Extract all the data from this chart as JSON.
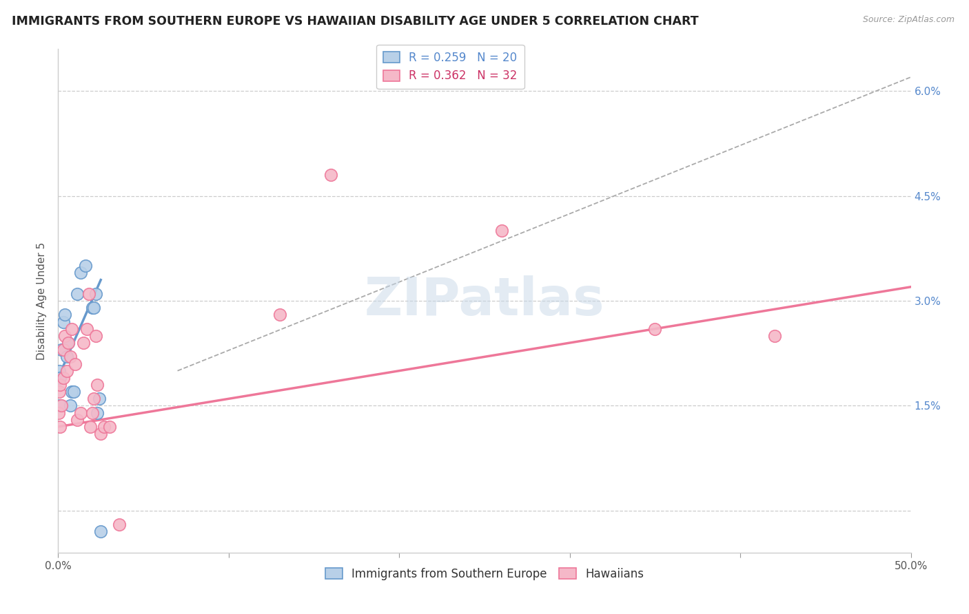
{
  "title": "IMMIGRANTS FROM SOUTHERN EUROPE VS HAWAIIAN DISABILITY AGE UNDER 5 CORRELATION CHART",
  "source": "Source: ZipAtlas.com",
  "ylabel": "Disability Age Under 5",
  "xlim": [
    0.0,
    0.5
  ],
  "ylim": [
    -0.006,
    0.066
  ],
  "yticks": [
    0.0,
    0.015,
    0.03,
    0.045,
    0.06
  ],
  "ytick_labels": [
    "",
    "1.5%",
    "3.0%",
    "4.5%",
    "6.0%"
  ],
  "xticks": [
    0.0,
    0.1,
    0.2,
    0.3,
    0.4,
    0.5
  ],
  "xtick_labels": [
    "0.0%",
    "",
    "",
    "",
    "",
    "50.0%"
  ],
  "blue_R": 0.259,
  "blue_N": 20,
  "pink_R": 0.362,
  "pink_N": 32,
  "blue_scatter_x": [
    0.0005,
    0.001,
    0.001,
    0.002,
    0.003,
    0.004,
    0.005,
    0.006,
    0.007,
    0.008,
    0.009,
    0.011,
    0.013,
    0.016,
    0.02,
    0.021,
    0.022,
    0.023,
    0.024,
    0.025
  ],
  "blue_scatter_y": [
    0.02,
    0.015,
    0.019,
    0.023,
    0.027,
    0.028,
    0.022,
    0.024,
    0.015,
    0.017,
    0.017,
    0.031,
    0.034,
    0.035,
    0.029,
    0.029,
    0.031,
    0.014,
    0.016,
    -0.003
  ],
  "pink_scatter_x": [
    0.0004,
    0.0005,
    0.001,
    0.001,
    0.002,
    0.003,
    0.003,
    0.004,
    0.005,
    0.006,
    0.007,
    0.008,
    0.01,
    0.011,
    0.013,
    0.015,
    0.017,
    0.018,
    0.019,
    0.02,
    0.021,
    0.022,
    0.023,
    0.025,
    0.027,
    0.03,
    0.036,
    0.13,
    0.16,
    0.26,
    0.35,
    0.42
  ],
  "pink_scatter_y": [
    0.014,
    0.017,
    0.012,
    0.018,
    0.015,
    0.019,
    0.023,
    0.025,
    0.02,
    0.024,
    0.022,
    0.026,
    0.021,
    0.013,
    0.014,
    0.024,
    0.026,
    0.031,
    0.012,
    0.014,
    0.016,
    0.025,
    0.018,
    0.011,
    0.012,
    0.012,
    -0.002,
    0.028,
    0.048,
    0.04,
    0.026,
    0.025
  ],
  "blue_line_x": [
    0.0,
    0.025
  ],
  "blue_line_y": [
    0.019,
    0.033
  ],
  "pink_line_x": [
    0.0,
    0.5
  ],
  "pink_line_y": [
    0.012,
    0.032
  ],
  "dashed_line_x": [
    0.07,
    0.5
  ],
  "dashed_line_y": [
    0.02,
    0.062
  ],
  "watermark": "ZIPatlas",
  "background_color": "#ffffff",
  "blue_color": "#6699cc",
  "pink_color": "#ee7799",
  "blue_fill": "#b8d0e8",
  "pink_fill": "#f5b8c8",
  "grid_color": "#cccccc",
  "title_fontsize": 12.5,
  "axis_fontsize": 11,
  "legend_fontsize": 12
}
